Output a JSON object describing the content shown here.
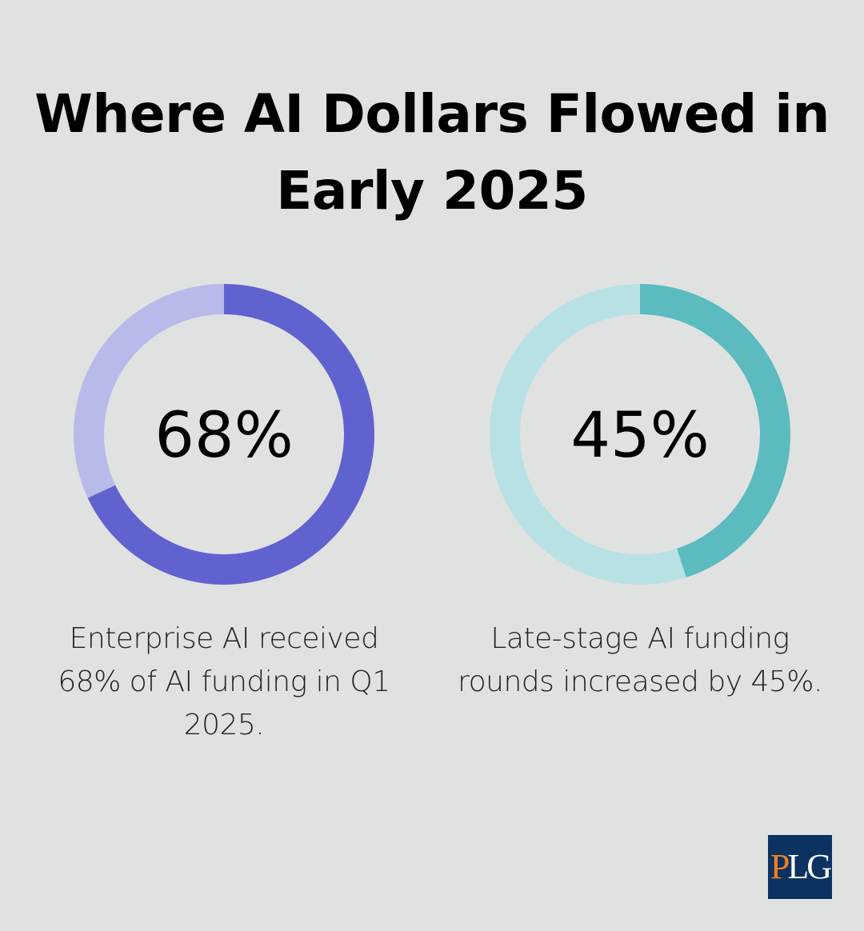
{
  "title": "Where AI Dollars Flowed in Early 2025",
  "chart_data": [
    {
      "type": "pie",
      "variant": "donut",
      "label": "68%",
      "value": 68,
      "caption": "Enterprise AI received 68% of AI funding in Q1 2025.",
      "colors": {
        "filled": "#6063cf",
        "track": "#b8bae9"
      }
    },
    {
      "type": "pie",
      "variant": "donut",
      "label": "45%",
      "value": 45,
      "caption": "Late-stage AI funding rounds increased by 45%.",
      "colors": {
        "filled": "#5bbbbf",
        "track": "#b8e1e3"
      }
    }
  ],
  "logo": {
    "text": "PLG",
    "colors": {
      "background": "#0c3261",
      "accent": "#f07f1e",
      "light": "#ffffff"
    }
  }
}
